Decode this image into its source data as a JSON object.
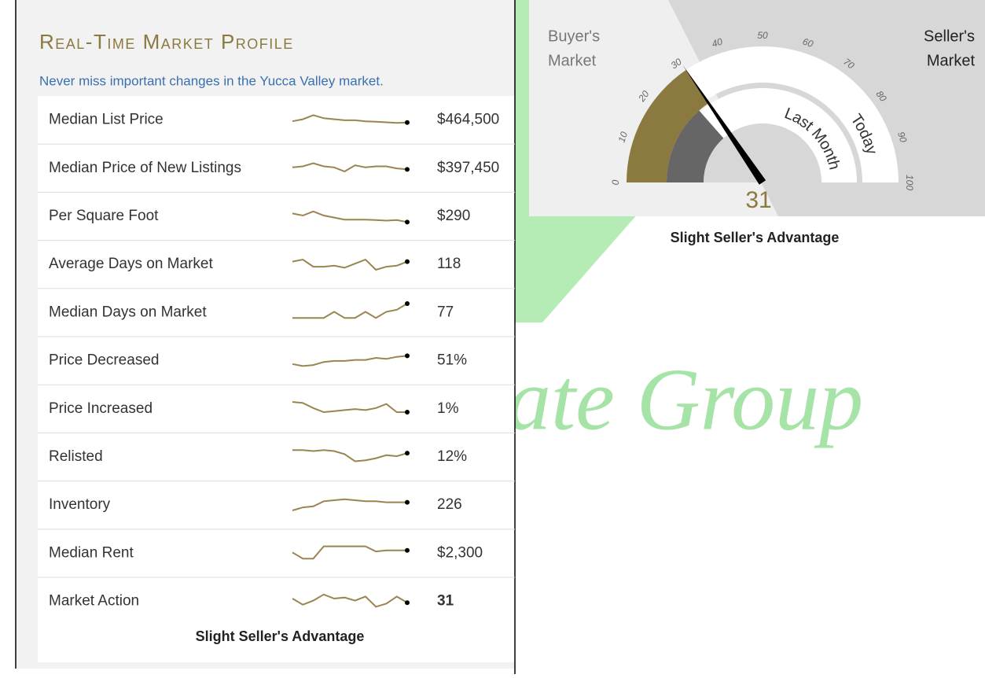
{
  "profile": {
    "title": "Real-Time Market Profile",
    "subtitle": "Never miss important changes in the Yucca Valley market.",
    "rows": [
      {
        "label": "Median List Price",
        "value": "$464,500",
        "trend": [
          4,
          5,
          7,
          5.5,
          5,
          4.5,
          4.5,
          4,
          3.8,
          3.5,
          3.2,
          3.4
        ]
      },
      {
        "label": "Median Price of New Listings",
        "value": "$397,450",
        "trend": [
          5,
          5.5,
          7,
          5.5,
          5,
          3,
          6,
          5,
          5.5,
          5.5,
          4.5,
          4
        ]
      },
      {
        "label": "Per Square Foot",
        "value": "$290",
        "trend": [
          6,
          5,
          7,
          5,
          4,
          3,
          3,
          3,
          2.8,
          2.5,
          2.8,
          1.8
        ]
      },
      {
        "label": "Average Days on Market",
        "value": "118",
        "trend": [
          6,
          7,
          3.5,
          3.5,
          4,
          3,
          5,
          7,
          2,
          3.5,
          4,
          6
        ]
      },
      {
        "label": "Median Days on Market",
        "value": "77",
        "trend": [
          2,
          2,
          2,
          2,
          5,
          2,
          2,
          5,
          2,
          5,
          6,
          9
        ]
      },
      {
        "label": "Price Decreased",
        "value": "51%",
        "trend": [
          3,
          2,
          2.5,
          4,
          4.5,
          4.5,
          5,
          5,
          6,
          5.5,
          6.5,
          7
        ]
      },
      {
        "label": "Price Increased",
        "value": "1%",
        "trend": [
          8,
          7.5,
          5,
          3,
          3.5,
          4,
          4.5,
          4,
          5,
          7,
          3,
          3
        ]
      },
      {
        "label": "Relisted",
        "value": "12%",
        "trend": [
          8,
          8,
          7.5,
          8,
          7.5,
          6,
          2.5,
          3,
          4,
          5.5,
          5,
          6.5
        ]
      },
      {
        "label": "Inventory",
        "value": "226",
        "trend": [
          2,
          3.5,
          4,
          6.5,
          7,
          7.5,
          7,
          6.5,
          6.5,
          6,
          6,
          6
        ]
      },
      {
        "label": "Median Rent",
        "value": "$2,300",
        "trend": [
          5,
          2,
          2,
          8,
          8,
          8,
          8,
          8,
          5.5,
          6,
          6,
          6
        ]
      },
      {
        "label": "Market Action",
        "value": "31",
        "trend": [
          6,
          3,
          5,
          8,
          6,
          6.5,
          5,
          7,
          2,
          3.5,
          7,
          4
        ]
      }
    ],
    "footer": "Slight Seller's Advantage"
  },
  "gauge": {
    "buyer_label": [
      "Buyer's",
      "Market"
    ],
    "seller_label": [
      "Seller's",
      "Market"
    ],
    "ticks": [
      0,
      10,
      20,
      30,
      40,
      50,
      60,
      70,
      80,
      90,
      100
    ],
    "range": [
      0,
      100
    ],
    "value": 31,
    "last_month": 27,
    "inner_label": "Last Month",
    "outer_label": "Today",
    "caption": "Slight Seller's Advantage"
  },
  "watermark": "ate Group"
}
